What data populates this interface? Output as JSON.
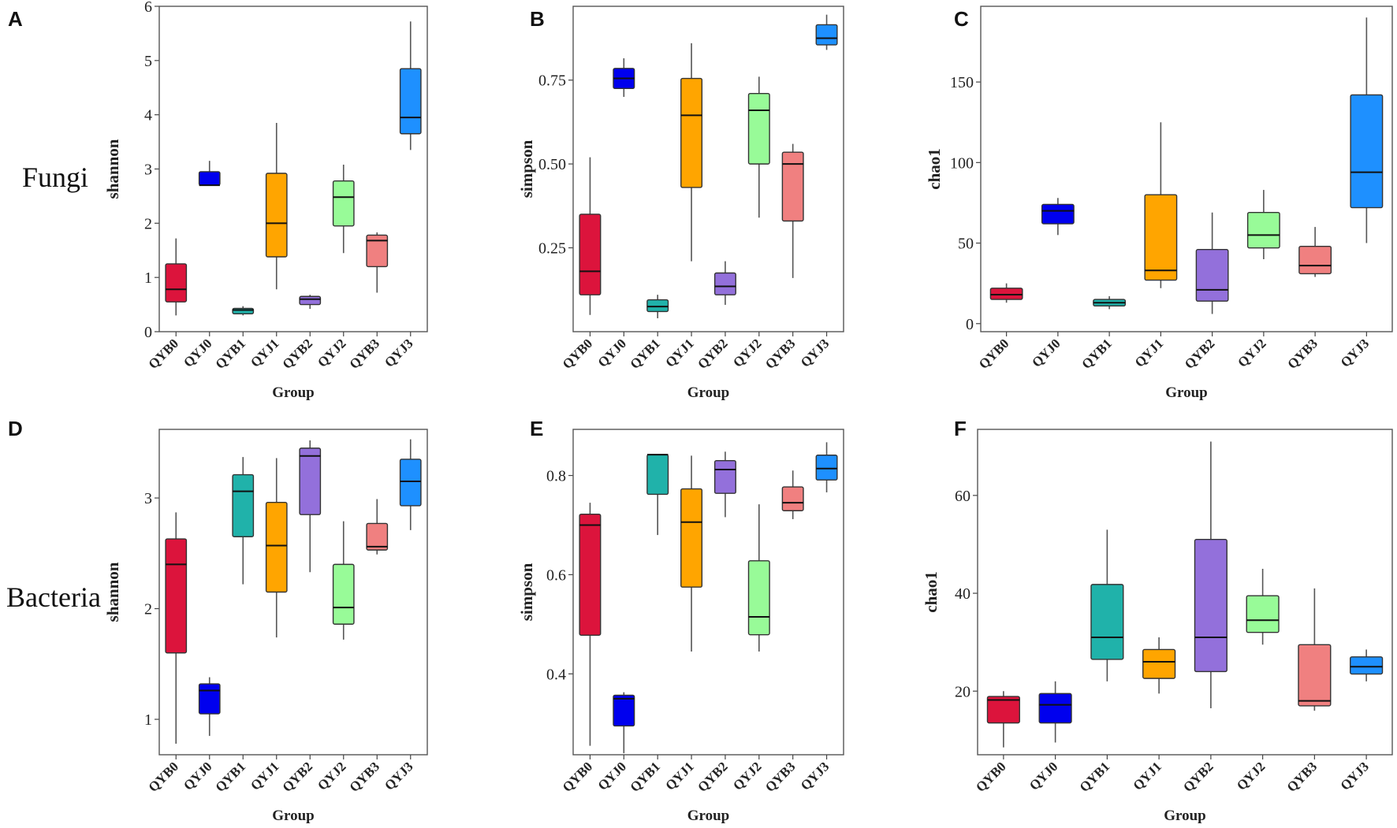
{
  "figure": {
    "row_labels": [
      "Fungi",
      "Bacteria"
    ]
  },
  "chart_data": [
    {
      "panel": "A",
      "type": "boxplot",
      "row": "Fungi",
      "xlabel": "Group",
      "ylabel": "shannon",
      "ylim": [
        0,
        6
      ],
      "yticks": [
        0,
        1,
        2,
        3,
        4,
        5,
        6
      ],
      "categories": [
        "QYB0",
        "QYJ0",
        "QYB1",
        "QYJ1",
        "QYB2",
        "QYJ2",
        "QYB3",
        "QYJ3"
      ],
      "colors": [
        "#dc143c",
        "#0000ee",
        "#20b2aa",
        "#ffa500",
        "#9370db",
        "#98fb98",
        "#f08080",
        "#1e90ff"
      ],
      "boxes": [
        {
          "min": 0.3,
          "q1": 0.55,
          "median": 0.78,
          "q3": 1.25,
          "max": 1.72
        },
        {
          "min": 2.7,
          "q1": 2.7,
          "median": 2.7,
          "q3": 2.95,
          "max": 3.15
        },
        {
          "min": 0.3,
          "q1": 0.33,
          "median": 0.4,
          "q3": 0.43,
          "max": 0.47
        },
        {
          "min": 0.78,
          "q1": 1.38,
          "median": 2.0,
          "q3": 2.92,
          "max": 3.85
        },
        {
          "min": 0.42,
          "q1": 0.5,
          "median": 0.6,
          "q3": 0.65,
          "max": 0.68
        },
        {
          "min": 1.45,
          "q1": 1.95,
          "median": 2.48,
          "q3": 2.78,
          "max": 3.08
        },
        {
          "min": 0.72,
          "q1": 1.2,
          "median": 1.68,
          "q3": 1.78,
          "max": 1.83
        },
        {
          "min": 3.35,
          "q1": 3.65,
          "median": 3.95,
          "q3": 4.85,
          "max": 5.72
        }
      ]
    },
    {
      "panel": "B",
      "type": "boxplot",
      "row": "Fungi",
      "xlabel": "Group",
      "ylabel": "simpson",
      "ylim": [
        0.0,
        0.97
      ],
      "yticks": [
        0.25,
        0.5,
        0.75
      ],
      "ytick_labels": [
        "0.25",
        "0.50",
        "0.75"
      ],
      "categories": [
        "QYB0",
        "QYJ0",
        "QYB1",
        "QYJ1",
        "QYB2",
        "QYJ2",
        "QYB3",
        "QYJ3"
      ],
      "colors": [
        "#dc143c",
        "#0000ee",
        "#20b2aa",
        "#ffa500",
        "#9370db",
        "#98fb98",
        "#f08080",
        "#1e90ff"
      ],
      "boxes": [
        {
          "min": 0.05,
          "q1": 0.11,
          "median": 0.18,
          "q3": 0.35,
          "max": 0.52
        },
        {
          "min": 0.7,
          "q1": 0.725,
          "median": 0.755,
          "q3": 0.785,
          "max": 0.815
        },
        {
          "min": 0.04,
          "q1": 0.06,
          "median": 0.075,
          "q3": 0.095,
          "max": 0.11
        },
        {
          "min": 0.21,
          "q1": 0.43,
          "median": 0.645,
          "q3": 0.755,
          "max": 0.86
        },
        {
          "min": 0.08,
          "q1": 0.11,
          "median": 0.135,
          "q3": 0.175,
          "max": 0.21
        },
        {
          "min": 0.34,
          "q1": 0.5,
          "median": 0.66,
          "q3": 0.71,
          "max": 0.76
        },
        {
          "min": 0.16,
          "q1": 0.33,
          "median": 0.5,
          "q3": 0.535,
          "max": 0.56
        },
        {
          "min": 0.84,
          "q1": 0.855,
          "median": 0.875,
          "q3": 0.915,
          "max": 0.945
        }
      ]
    },
    {
      "panel": "C",
      "type": "boxplot",
      "row": "Fungi",
      "xlabel": "Group",
      "ylabel": "chao1",
      "ylim": [
        -5,
        197
      ],
      "yticks": [
        0,
        50,
        100,
        150
      ],
      "categories": [
        "QYB0",
        "QYJ0",
        "QYB1",
        "QYJ1",
        "QYB2",
        "QYJ2",
        "QYB3",
        "QYJ3"
      ],
      "colors": [
        "#dc143c",
        "#0000ee",
        "#20b2aa",
        "#ffa500",
        "#9370db",
        "#98fb98",
        "#f08080",
        "#1e90ff"
      ],
      "boxes": [
        {
          "min": 13,
          "q1": 15,
          "median": 18,
          "q3": 22,
          "max": 25
        },
        {
          "min": 55,
          "q1": 62,
          "median": 70,
          "q3": 74,
          "max": 78
        },
        {
          "min": 9,
          "q1": 11,
          "median": 13,
          "q3": 15,
          "max": 17
        },
        {
          "min": 22,
          "q1": 27,
          "median": 33,
          "q3": 80,
          "max": 125
        },
        {
          "min": 6,
          "q1": 14,
          "median": 21,
          "q3": 46,
          "max": 69
        },
        {
          "min": 40,
          "q1": 47,
          "median": 55,
          "q3": 69,
          "max": 83
        },
        {
          "min": 29,
          "q1": 31,
          "median": 36,
          "q3": 48,
          "max": 60
        },
        {
          "min": 50,
          "q1": 72,
          "median": 94,
          "q3": 142,
          "max": 190
        }
      ]
    },
    {
      "panel": "D",
      "type": "boxplot",
      "row": "Bacteria",
      "xlabel": "Group",
      "ylabel": "shannon",
      "ylim": [
        0.68,
        3.62
      ],
      "yticks": [
        1,
        2,
        3
      ],
      "categories": [
        "QYB0",
        "QYJ0",
        "QYB1",
        "QYJ1",
        "QYB2",
        "QYJ2",
        "QYB3",
        "QYJ3"
      ],
      "colors": [
        "#dc143c",
        "#0000ee",
        "#20b2aa",
        "#ffa500",
        "#9370db",
        "#98fb98",
        "#f08080",
        "#1e90ff"
      ],
      "boxes": [
        {
          "min": 0.78,
          "q1": 1.6,
          "median": 2.4,
          "q3": 2.63,
          "max": 2.87
        },
        {
          "min": 0.85,
          "q1": 1.05,
          "median": 1.26,
          "q3": 1.32,
          "max": 1.38
        },
        {
          "min": 2.22,
          "q1": 2.65,
          "median": 3.06,
          "q3": 3.21,
          "max": 3.37
        },
        {
          "min": 1.74,
          "q1": 2.15,
          "median": 2.57,
          "q3": 2.96,
          "max": 3.36
        },
        {
          "min": 2.33,
          "q1": 2.85,
          "median": 3.38,
          "q3": 3.45,
          "max": 3.52
        },
        {
          "min": 1.72,
          "q1": 1.86,
          "median": 2.01,
          "q3": 2.4,
          "max": 2.79
        },
        {
          "min": 2.49,
          "q1": 2.53,
          "median": 2.56,
          "q3": 2.77,
          "max": 2.99
        },
        {
          "min": 2.71,
          "q1": 2.93,
          "median": 3.15,
          "q3": 3.35,
          "max": 3.53
        }
      ]
    },
    {
      "panel": "E",
      "type": "boxplot",
      "row": "Bacteria",
      "xlabel": "Group",
      "ylabel": "simpson",
      "ylim": [
        0.237,
        0.893
      ],
      "yticks": [
        0.4,
        0.6,
        0.8
      ],
      "ytick_labels": [
        "0.4",
        "0.6",
        "0.8"
      ],
      "categories": [
        "QYB0",
        "QYJ0",
        "QYB1",
        "QYJ1",
        "QYB2",
        "QYJ2",
        "QYB3",
        "QYJ3"
      ],
      "colors": [
        "#dc143c",
        "#0000ee",
        "#20b2aa",
        "#ffa500",
        "#9370db",
        "#98fb98",
        "#f08080",
        "#1e90ff"
      ],
      "boxes": [
        {
          "min": 0.255,
          "q1": 0.478,
          "median": 0.7,
          "q3": 0.722,
          "max": 0.745
        },
        {
          "min": 0.24,
          "q1": 0.295,
          "median": 0.35,
          "q3": 0.357,
          "max": 0.363
        },
        {
          "min": 0.68,
          "q1": 0.762,
          "median": 0.842,
          "q3": 0.842,
          "max": 0.842
        },
        {
          "min": 0.445,
          "q1": 0.575,
          "median": 0.706,
          "q3": 0.773,
          "max": 0.84
        },
        {
          "min": 0.716,
          "q1": 0.764,
          "median": 0.812,
          "q3": 0.83,
          "max": 0.848
        },
        {
          "min": 0.445,
          "q1": 0.479,
          "median": 0.515,
          "q3": 0.628,
          "max": 0.742
        },
        {
          "min": 0.712,
          "q1": 0.729,
          "median": 0.745,
          "q3": 0.777,
          "max": 0.81
        },
        {
          "min": 0.766,
          "q1": 0.791,
          "median": 0.814,
          "q3": 0.841,
          "max": 0.867
        }
      ]
    },
    {
      "panel": "F",
      "type": "boxplot",
      "row": "Bacteria",
      "xlabel": "Group",
      "ylabel": "chao1",
      "ylim": [
        7,
        73.5
      ],
      "yticks": [
        20,
        40,
        60
      ],
      "categories": [
        "QYB0",
        "QYJ0",
        "QYB1",
        "QYJ1",
        "QYB2",
        "QYJ2",
        "QYB3",
        "QYJ3"
      ],
      "colors": [
        "#dc143c",
        "#0000ee",
        "#20b2aa",
        "#ffa500",
        "#9370db",
        "#98fb98",
        "#f08080",
        "#1e90ff"
      ],
      "boxes": [
        {
          "min": 8.5,
          "q1": 13.5,
          "median": 18.2,
          "q3": 18.9,
          "max": 20
        },
        {
          "min": 9.5,
          "q1": 13.5,
          "median": 17.2,
          "q3": 19.5,
          "max": 22
        },
        {
          "min": 22,
          "q1": 26.5,
          "median": 31,
          "q3": 41.8,
          "max": 53
        },
        {
          "min": 19.5,
          "q1": 22.6,
          "median": 26,
          "q3": 28.5,
          "max": 31
        },
        {
          "min": 16.5,
          "q1": 24,
          "median": 31,
          "q3": 51,
          "max": 71
        },
        {
          "min": 29.5,
          "q1": 32,
          "median": 34.5,
          "q3": 39.5,
          "max": 45
        },
        {
          "min": 16,
          "q1": 17,
          "median": 18,
          "q3": 29.5,
          "max": 41
        },
        {
          "min": 22,
          "q1": 23.5,
          "median": 25,
          "q3": 27,
          "max": 28.5
        }
      ]
    }
  ]
}
